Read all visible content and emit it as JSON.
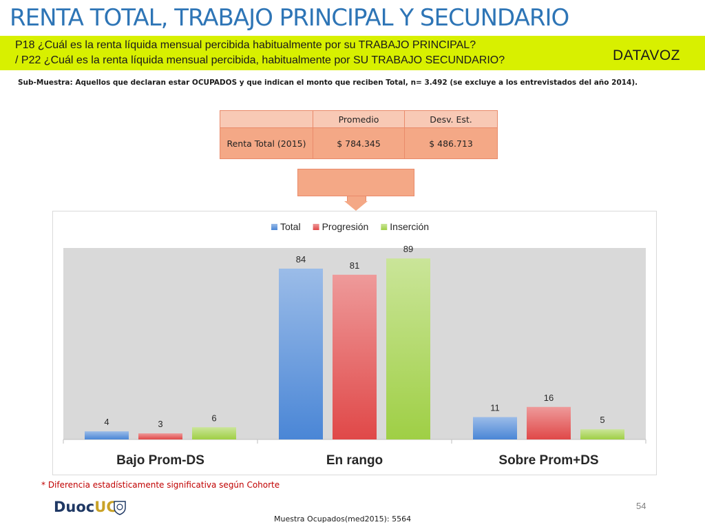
{
  "slide": {
    "title": "RENTA TOTAL, TRABAJO PRINCIPAL Y SECUNDARIO",
    "question_1": "P18 ¿Cuál es la renta líquida mensual percibida habitualmente por su TRABAJO PRINCIPAL?",
    "question_2": "/ P22 ¿Cuál es la  renta líquida mensual percibida, habitualmente por  SU TRABAJO SECUNDARIO?",
    "logo_text": "DATAVOZ",
    "subsample": "Sub-Muestra: Aquellos que declaran estar OCUPADOS y que indican el monto que reciben Total, n= 3.492 (se excluye a los entrevistados del año 2014).",
    "note": "* Diferencia estadísticamente significativa según Cohorte",
    "page_number": "54",
    "footer_logo_1": "Duoc",
    "footer_logo_2": "UC",
    "sample_text": "Muestra Ocupados(med2015): 5564"
  },
  "stats_table": {
    "headers": [
      "",
      "Promedio",
      "Desv. Est."
    ],
    "row_label": "Renta Total (2015)",
    "promedio": "$ 784.345",
    "desv": "$ 486.713"
  },
  "chart_data": {
    "type": "bar",
    "categories": [
      "Bajo  Prom-DS",
      "En rango",
      "Sobre Prom+DS"
    ],
    "series": [
      {
        "name": "Total",
        "values": [
          4,
          84,
          11
        ],
        "color": "#4a86d6"
      },
      {
        "name": "Progresión",
        "values": [
          3,
          81,
          16
        ],
        "color": "#e04848"
      },
      {
        "name": "Inserción",
        "values": [
          6,
          89,
          5
        ],
        "color": "#9fcf45"
      }
    ],
    "ylim": [
      0,
      90
    ],
    "legend": "top-center",
    "plot_background": "#d9d9d9",
    "grid": false
  }
}
